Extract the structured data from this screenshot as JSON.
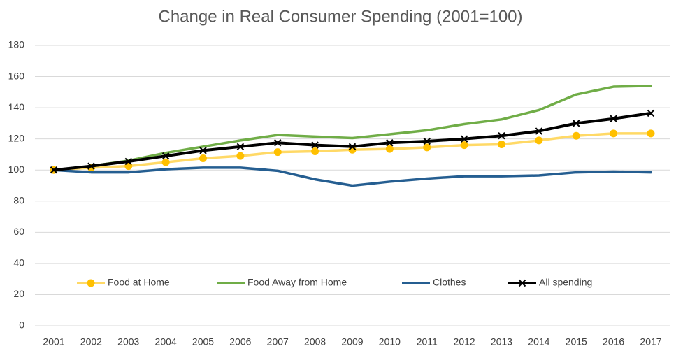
{
  "chart_data": {
    "type": "line",
    "title": "Change in Real Consumer Spending (2001=100)",
    "categories": [
      "2001",
      "2002",
      "2003",
      "2004",
      "2005",
      "2006",
      "2007",
      "2008",
      "2009",
      "2010",
      "2011",
      "2012",
      "2013",
      "2014",
      "2015",
      "2016",
      "2017"
    ],
    "series": [
      {
        "name": "Food at Home",
        "color": "#FFD966",
        "marker": "circle",
        "marker_color": "#FFC000",
        "values": [
          100,
          101.5,
          102.5,
          105,
          107.5,
          109,
          111.5,
          112,
          113,
          113.5,
          114.5,
          116,
          116.5,
          119,
          122,
          123.5,
          123.5
        ]
      },
      {
        "name": "Food Away from Home",
        "color": "#70AD47",
        "marker": "none",
        "values": [
          100,
          102.5,
          106,
          111,
          115,
          119,
          122.5,
          121.5,
          120.5,
          123,
          125.5,
          129.5,
          132.5,
          138.5,
          148.5,
          153.5,
          154
        ]
      },
      {
        "name": "Clothes",
        "color": "#255E91",
        "marker": "none",
        "values": [
          100,
          98.5,
          98.5,
          100.5,
          101.5,
          101.5,
          99.5,
          94,
          90,
          92.5,
          94.5,
          96,
          96,
          96.5,
          98.5,
          99,
          98.5
        ]
      },
      {
        "name": "All spending",
        "color": "#000000",
        "marker": "x",
        "marker_color": "#000000",
        "values": [
          100,
          102.5,
          105.5,
          109,
          112.5,
          115,
          117.5,
          116,
          115,
          117.5,
          118.5,
          120,
          122,
          125,
          130,
          133,
          136.5
        ]
      }
    ],
    "ylim": [
      0,
      180
    ],
    "yticks": [
      0,
      20,
      40,
      60,
      80,
      100,
      120,
      140,
      160,
      180
    ],
    "grid": true
  }
}
